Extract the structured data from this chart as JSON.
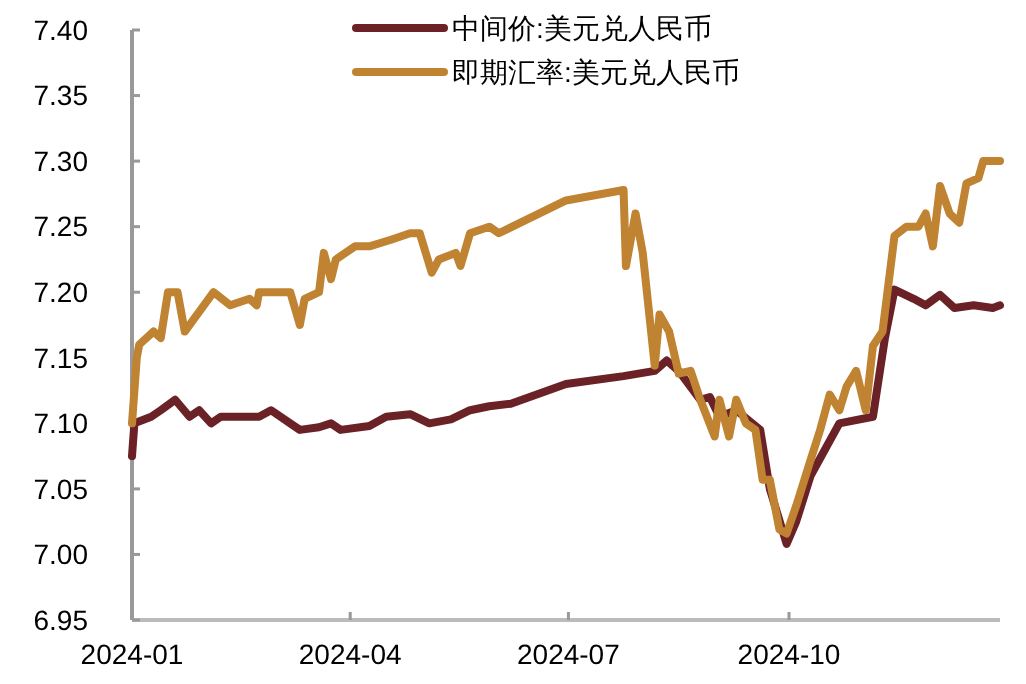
{
  "chart_data": {
    "type": "line",
    "legend": "top right",
    "line_style": "solid",
    "marker": "none",
    "xlim": [
      "2024-01-01",
      "2024-12-28"
    ],
    "xticks": [
      {
        "value": "2024-01-01",
        "label": "2024-01"
      },
      {
        "value": "2024-04-01",
        "label": "2024-04"
      },
      {
        "value": "2024-07-01",
        "label": "2024-07"
      },
      {
        "value": "2024-10-01",
        "label": "2024-10"
      }
    ],
    "ylim": [
      6.95,
      7.4
    ],
    "yticks": [
      6.95,
      {
        "value": 7.0,
        "label": "7.00"
      },
      7.05,
      {
        "value": 7.1,
        "label": "7.10"
      },
      7.15,
      {
        "value": 7.2,
        "label": "7.20"
      },
      7.25,
      {
        "value": 7.3,
        "label": "7.30"
      },
      7.35,
      {
        "value": 7.4,
        "label": "7.40"
      }
    ],
    "series": [
      {
        "name": "中间价:美元兑人民币",
        "color": "#6b2226",
        "x": [
          "2024-01-01",
          "2024-01-02",
          "2024-01-09",
          "2024-01-13",
          "2024-01-19",
          "2024-01-25",
          "2024-01-29",
          "2024-02-03",
          "2024-02-07",
          "2024-02-15",
          "2024-02-23",
          "2024-02-28",
          "2024-03-07",
          "2024-03-11",
          "2024-03-19",
          "2024-03-24",
          "2024-03-28",
          "2024-04-09",
          "2024-04-16",
          "2024-04-26",
          "2024-05-04",
          "2024-05-13",
          "2024-05-21",
          "2024-05-29",
          "2024-06-07",
          "2024-06-30",
          "2024-07-24",
          "2024-08-06",
          "2024-08-11",
          "2024-08-16",
          "2024-08-25",
          "2024-08-29",
          "2024-09-02",
          "2024-09-09",
          "2024-09-19",
          "2024-09-23",
          "2024-09-30",
          "2024-10-04",
          "2024-10-10",
          "2024-10-22",
          "2024-11-05",
          "2024-11-10",
          "2024-11-14",
          "2024-11-22",
          "2024-11-27",
          "2024-12-03",
          "2024-12-09",
          "2024-12-17",
          "2024-12-25",
          "2024-12-28"
        ],
        "values": [
          7.075,
          7.1,
          7.105,
          7.11,
          7.118,
          7.105,
          7.11,
          7.1,
          7.105,
          7.105,
          7.105,
          7.11,
          7.1,
          7.095,
          7.097,
          7.1,
          7.095,
          7.098,
          7.105,
          7.107,
          7.1,
          7.103,
          7.11,
          7.113,
          7.115,
          7.13,
          7.136,
          7.14,
          7.148,
          7.14,
          7.118,
          7.12,
          7.105,
          7.11,
          7.095,
          7.05,
          7.008,
          7.025,
          7.06,
          7.1,
          7.105,
          7.165,
          7.202,
          7.195,
          7.19,
          7.198,
          7.188,
          7.19,
          7.188,
          7.19
        ]
      },
      {
        "name": "即期汇率:美元兑人民币",
        "color": "#c08332",
        "x": [
          "2024-01-01",
          "2024-01-03",
          "2024-01-04",
          "2024-01-10",
          "2024-01-13",
          "2024-01-16",
          "2024-01-20",
          "2024-01-23",
          "2024-01-27",
          "2024-01-29",
          "2024-02-04",
          "2024-02-11",
          "2024-02-19",
          "2024-02-22",
          "2024-02-23",
          "2024-03-07",
          "2024-03-11",
          "2024-03-13",
          "2024-03-19",
          "2024-03-21",
          "2024-03-24",
          "2024-03-26",
          "2024-04-03",
          "2024-04-09",
          "2024-04-18",
          "2024-04-26",
          "2024-04-30",
          "2024-05-05",
          "2024-05-08",
          "2024-05-15",
          "2024-05-17",
          "2024-05-21",
          "2024-05-29",
          "2024-06-02",
          "2024-06-30",
          "2024-07-24",
          "2024-07-25",
          "2024-07-29",
          "2024-08-01",
          "2024-08-06",
          "2024-08-08",
          "2024-08-12",
          "2024-08-16",
          "2024-08-21",
          "2024-08-25",
          "2024-08-31",
          "2024-09-02",
          "2024-09-06",
          "2024-09-09",
          "2024-09-13",
          "2024-09-17",
          "2024-09-20",
          "2024-09-23",
          "2024-09-27",
          "2024-09-30",
          "2024-10-04",
          "2024-10-10",
          "2024-10-14",
          "2024-10-18",
          "2024-10-22",
          "2024-10-25",
          "2024-10-29",
          "2024-11-02",
          "2024-11-05",
          "2024-11-09",
          "2024-11-14",
          "2024-11-19",
          "2024-11-24",
          "2024-11-27",
          "2024-11-30",
          "2024-12-03",
          "2024-12-07",
          "2024-12-11",
          "2024-12-14",
          "2024-12-19",
          "2024-12-21",
          "2024-12-28"
        ],
        "values": [
          7.1,
          7.15,
          7.16,
          7.17,
          7.165,
          7.2,
          7.2,
          7.17,
          7.18,
          7.185,
          7.2,
          7.19,
          7.195,
          7.19,
          7.2,
          7.2,
          7.175,
          7.195,
          7.2,
          7.23,
          7.21,
          7.225,
          7.235,
          7.235,
          7.24,
          7.245,
          7.245,
          7.215,
          7.225,
          7.23,
          7.22,
          7.245,
          7.25,
          7.245,
          7.27,
          7.278,
          7.22,
          7.26,
          7.23,
          7.144,
          7.183,
          7.17,
          7.138,
          7.14,
          7.118,
          7.09,
          7.118,
          7.09,
          7.118,
          7.1,
          7.095,
          7.057,
          7.057,
          7.019,
          7.016,
          7.037,
          7.072,
          7.095,
          7.122,
          7.11,
          7.128,
          7.14,
          7.11,
          7.159,
          7.17,
          7.243,
          7.25,
          7.25,
          7.26,
          7.235,
          7.281,
          7.26,
          7.253,
          7.283,
          7.287,
          7.3,
          7.3
        ]
      }
    ]
  }
}
